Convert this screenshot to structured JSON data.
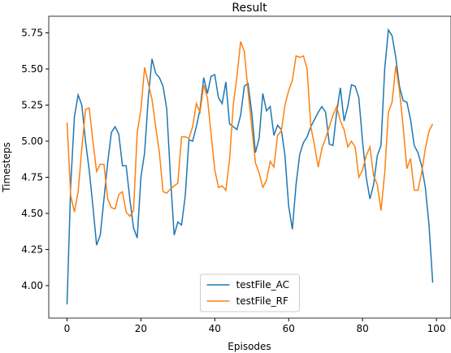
{
  "chart_data": {
    "type": "line",
    "title": "Result",
    "x_label": "Episodes",
    "y_label": "Timesteps",
    "x": [
      0,
      1,
      2,
      3,
      4,
      5,
      6,
      7,
      8,
      9,
      10,
      11,
      12,
      13,
      14,
      15,
      16,
      17,
      18,
      19,
      20,
      21,
      22,
      23,
      24,
      25,
      26,
      27,
      28,
      29,
      30,
      31,
      32,
      33,
      34,
      35,
      36,
      37,
      38,
      39,
      40,
      41,
      42,
      43,
      44,
      45,
      46,
      47,
      48,
      49,
      50,
      51,
      52,
      53,
      54,
      55,
      56,
      57,
      58,
      59,
      60,
      61,
      62,
      63,
      64,
      65,
      66,
      67,
      68,
      69,
      70,
      71,
      72,
      73,
      74,
      75,
      76,
      77,
      78,
      79,
      80,
      81,
      82,
      83,
      84,
      85,
      86,
      87,
      88,
      89,
      90,
      91,
      92,
      93,
      94,
      95,
      96,
      97,
      98,
      99
    ],
    "series": [
      {
        "name": "testFile_AC",
        "color": "#1f77b4",
        "values": [
          3.87,
          4.7,
          5.17,
          5.32,
          5.25,
          5.0,
          4.8,
          4.55,
          4.28,
          4.35,
          4.6,
          4.85,
          5.06,
          5.1,
          5.05,
          4.83,
          4.83,
          4.6,
          4.4,
          4.33,
          4.75,
          4.92,
          5.3,
          5.57,
          5.47,
          5.44,
          5.38,
          5.22,
          4.75,
          4.35,
          4.44,
          4.42,
          4.62,
          5.01,
          5.0,
          5.1,
          5.22,
          5.44,
          5.33,
          5.45,
          5.46,
          5.3,
          5.26,
          5.41,
          5.12,
          5.1,
          5.08,
          5.18,
          5.38,
          5.4,
          5.2,
          4.92,
          5.02,
          5.33,
          5.21,
          5.24,
          5.04,
          5.11,
          5.08,
          4.9,
          4.55,
          4.39,
          4.7,
          4.91,
          4.99,
          5.03,
          5.1,
          5.15,
          5.2,
          5.24,
          5.2,
          4.98,
          4.97,
          5.2,
          5.37,
          5.14,
          5.24,
          5.39,
          5.38,
          5.3,
          5.0,
          4.75,
          4.6,
          4.7,
          4.9,
          4.97,
          5.5,
          5.77,
          5.73,
          5.58,
          5.38,
          5.28,
          5.27,
          5.15,
          4.97,
          4.92,
          4.83,
          4.68,
          4.42,
          4.02
        ]
      },
      {
        "name": "testFile_RF",
        "color": "#ff7f0e",
        "values": [
          5.13,
          4.62,
          4.51,
          4.65,
          4.95,
          5.22,
          5.23,
          5.0,
          4.79,
          4.84,
          4.84,
          4.6,
          4.54,
          4.53,
          4.63,
          4.65,
          4.51,
          4.48,
          4.52,
          5.06,
          5.22,
          5.51,
          5.4,
          5.29,
          5.1,
          4.92,
          4.65,
          4.64,
          4.67,
          4.69,
          4.71,
          5.03,
          5.03,
          5.02,
          5.1,
          5.26,
          5.2,
          5.39,
          5.3,
          5.05,
          4.8,
          4.68,
          4.69,
          4.66,
          4.87,
          5.25,
          5.45,
          5.69,
          5.62,
          5.35,
          5.1,
          4.85,
          4.78,
          4.68,
          4.73,
          4.86,
          4.82,
          5.04,
          5.07,
          5.25,
          5.35,
          5.42,
          5.59,
          5.58,
          5.59,
          5.5,
          5.1,
          4.97,
          4.82,
          4.95,
          5.02,
          5.1,
          5.18,
          5.24,
          5.14,
          5.08,
          4.96,
          5.0,
          4.96,
          4.75,
          4.8,
          4.9,
          4.96,
          4.76,
          4.7,
          4.52,
          4.78,
          5.2,
          5.27,
          5.52,
          5.35,
          5.1,
          4.81,
          4.88,
          4.66,
          4.66,
          4.78,
          4.95,
          5.07,
          5.12
        ]
      }
    ],
    "xlim": [
      -4.95,
      103.95
    ],
    "ylim": [
      3.775,
      5.865
    ],
    "xticks": [
      0,
      20,
      40,
      60,
      80,
      100
    ],
    "yticks": [
      {
        "value": 4,
        "label": "4.00"
      },
      {
        "value": 4.25,
        "label": "4.25"
      },
      {
        "value": 4.5,
        "label": "4.50"
      },
      {
        "value": 4.75,
        "label": "4.75"
      },
      {
        "value": 5,
        "label": "5.00"
      },
      {
        "value": 5.25,
        "label": "5.25"
      },
      {
        "value": 5.5,
        "label": "5.50"
      },
      {
        "value": 5.75,
        "label": "5.75"
      }
    ],
    "grid": false,
    "legend": "lower center"
  }
}
